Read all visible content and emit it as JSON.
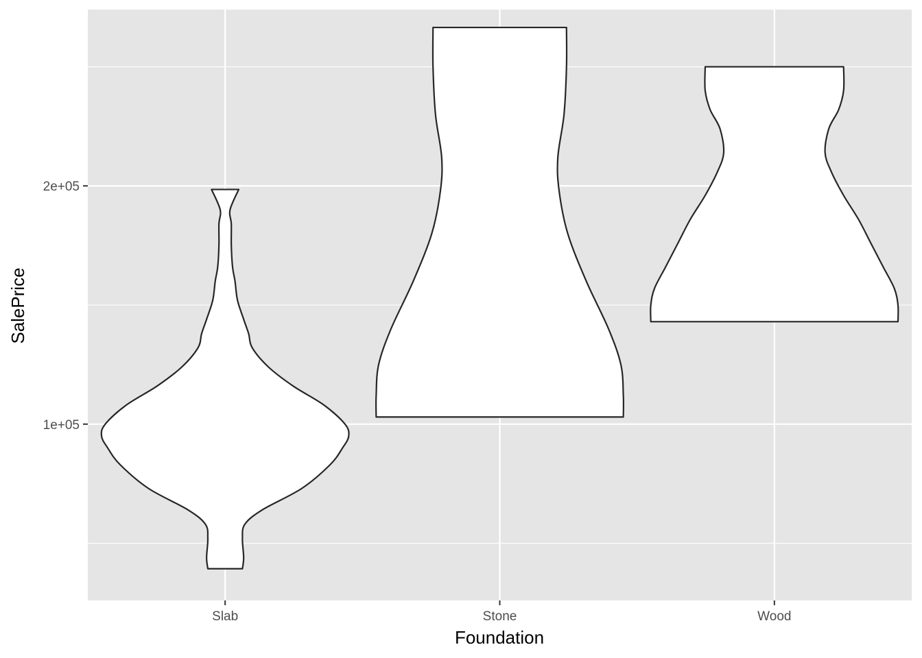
{
  "chart_data": {
    "type": "violin",
    "title": "",
    "xlabel": "Foundation",
    "ylabel": "SalePrice",
    "categories": [
      "Slab",
      "Stone",
      "Wood"
    ],
    "ylim": [
      26000,
      274000
    ],
    "y_ticks": [
      {
        "value": 100000,
        "label": "1e+05"
      },
      {
        "value": 200000,
        "label": "2e+05"
      }
    ],
    "y_minor_ticks": [
      50000,
      150000,
      250000
    ],
    "grid": true,
    "legend": "none",
    "colors": {
      "panel_background": "#e5e5e5",
      "grid": "#ffffff",
      "violin_fill": "#ffffff",
      "violin_outline": "#262626"
    },
    "series": [
      {
        "category": "Slab",
        "min": 39300,
        "max": 198500,
        "density_profile": [
          [
            39300,
            0.14
          ],
          [
            44000,
            0.15
          ],
          [
            52000,
            0.14
          ],
          [
            58000,
            0.16
          ],
          [
            64000,
            0.3
          ],
          [
            73000,
            0.62
          ],
          [
            83000,
            0.85
          ],
          [
            90000,
            0.95
          ],
          [
            95000,
            1.0
          ],
          [
            100000,
            0.97
          ],
          [
            108000,
            0.8
          ],
          [
            116000,
            0.55
          ],
          [
            124000,
            0.35
          ],
          [
            132000,
            0.22
          ],
          [
            138000,
            0.19
          ],
          [
            144000,
            0.15
          ],
          [
            152000,
            0.1
          ],
          [
            160000,
            0.08
          ],
          [
            166000,
            0.06
          ],
          [
            175000,
            0.05
          ],
          [
            184000,
            0.05
          ],
          [
            190000,
            0.04
          ],
          [
            198500,
            0.11
          ]
        ]
      },
      {
        "category": "Stone",
        "min": 103000,
        "max": 266500,
        "density_profile": [
          [
            103000,
            1.0
          ],
          [
            112000,
            1.0
          ],
          [
            125000,
            0.98
          ],
          [
            140000,
            0.88
          ],
          [
            160000,
            0.7
          ],
          [
            180000,
            0.55
          ],
          [
            198000,
            0.48
          ],
          [
            212000,
            0.47
          ],
          [
            230000,
            0.52
          ],
          [
            250000,
            0.54
          ],
          [
            266500,
            0.54
          ]
        ]
      },
      {
        "category": "Wood",
        "min": 143000,
        "max": 250000,
        "density_profile": [
          [
            143000,
            1.0
          ],
          [
            150000,
            1.0
          ],
          [
            157000,
            0.97
          ],
          [
            166000,
            0.88
          ],
          [
            176000,
            0.78
          ],
          [
            186000,
            0.68
          ],
          [
            196000,
            0.56
          ],
          [
            206000,
            0.46
          ],
          [
            214000,
            0.41
          ],
          [
            224000,
            0.44
          ],
          [
            232000,
            0.52
          ],
          [
            240000,
            0.56
          ],
          [
            250000,
            0.56
          ]
        ]
      }
    ]
  }
}
